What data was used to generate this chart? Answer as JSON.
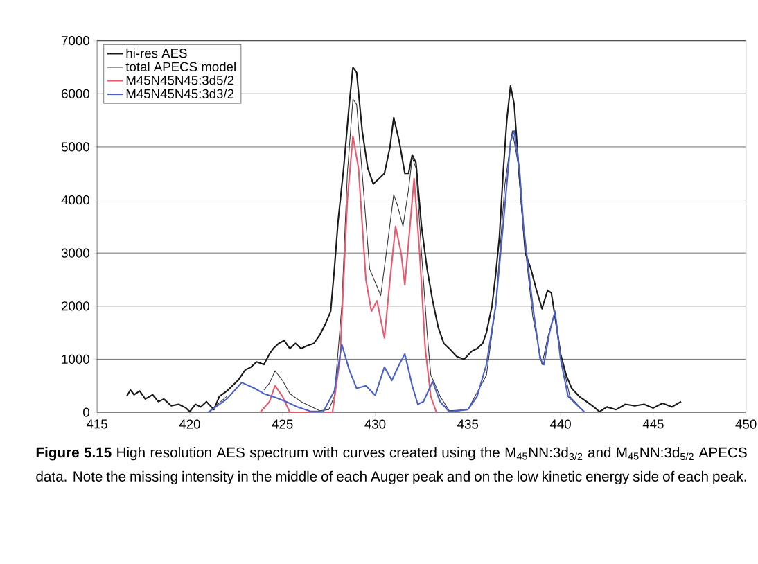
{
  "chart_data": {
    "type": "line",
    "annotations": [
      "**Figure 5.15** High resolution AES spectrum with curves created using the M$_{45}$NN:3d$_{3/2}$ and M$_{45}$NN:3d$_{5/2}$ APECS data. Note the missing intensity in the middle of each Auger peak and on the low kinetic energy side of each peak."
    ],
    "xlim": [
      415,
      450
    ],
    "ylim": [
      0,
      7000
    ],
    "xticks": [
      415,
      420,
      425,
      430,
      435,
      440,
      445,
      450
    ],
    "yticks": [
      0,
      1000,
      2000,
      3000,
      4000,
      5000,
      6000,
      7000
    ],
    "grid": "y",
    "legend": "top left",
    "marker": "none",
    "line_style": "solid",
    "series": [
      {
        "name": "hi-res AES",
        "color": "#1a1a1a",
        "x": [
          416.6,
          416.8,
          417.0,
          417.3,
          417.6,
          418.0,
          418.3,
          418.6,
          419.0,
          419.4,
          419.8,
          420.0,
          420.3,
          420.6,
          420.9,
          421.3,
          421.6,
          422.0,
          422.3,
          422.6,
          423.0,
          423.3,
          423.6,
          424.0,
          424.3,
          424.5,
          424.8,
          425.1,
          425.4,
          425.7,
          426.0,
          426.3,
          426.7,
          427.0,
          427.3,
          427.6,
          427.8,
          428.0,
          428.3,
          428.6,
          428.8,
          429.0,
          429.3,
          429.6,
          429.9,
          430.2,
          430.5,
          430.8,
          431.0,
          431.3,
          431.6,
          431.8,
          432.0,
          432.2,
          432.5,
          432.8,
          433.1,
          433.4,
          433.7,
          434.0,
          434.4,
          434.8,
          435.2,
          435.5,
          435.8,
          436.0,
          436.3,
          436.5,
          436.7,
          436.9,
          437.1,
          437.3,
          437.5,
          437.7,
          437.9,
          438.1,
          438.4,
          438.7,
          439.0,
          439.3,
          439.5,
          439.7,
          440.0,
          440.3,
          440.6,
          441.0,
          441.4,
          441.8,
          442.1,
          442.5,
          443.0,
          443.5,
          444.0,
          444.5,
          445.0,
          445.5,
          446.0,
          446.5
        ],
        "values": [
          300,
          420,
          330,
          400,
          250,
          330,
          200,
          250,
          120,
          150,
          80,
          10,
          150,
          100,
          200,
          50,
          300,
          400,
          500,
          600,
          800,
          850,
          950,
          900,
          1100,
          1200,
          1300,
          1350,
          1200,
          1300,
          1200,
          1250,
          1300,
          1450,
          1650,
          1900,
          2700,
          3600,
          4600,
          5800,
          6500,
          6400,
          5300,
          4600,
          4300,
          4400,
          4500,
          5000,
          5550,
          5100,
          4500,
          4500,
          4850,
          4700,
          3500,
          2700,
          2100,
          1600,
          1300,
          1200,
          1050,
          1000,
          1150,
          1200,
          1300,
          1500,
          2000,
          2600,
          3300,
          4500,
          5500,
          6150,
          5800,
          4800,
          3900,
          3000,
          2700,
          2300,
          1950,
          2300,
          2250,
          1800,
          1100,
          700,
          450,
          300,
          200,
          100,
          10,
          100,
          50,
          150,
          120,
          150,
          80,
          170,
          100,
          200
        ]
      },
      {
        "name": "total APECS model",
        "color": "#333333",
        "x": [
          421.0,
          422.0,
          422.8,
          423.5,
          424.0,
          424.3,
          424.6,
          425.0,
          425.4,
          426.0,
          427.0,
          427.5,
          427.8,
          428.2,
          428.5,
          428.8,
          429.0,
          429.3,
          429.7,
          430.0,
          430.3,
          430.6,
          431.0,
          431.2,
          431.5,
          431.8,
          432.0,
          432.2,
          432.5,
          432.8,
          433.0,
          433.2,
          433.5,
          434.0,
          435.0,
          436.0,
          436.5,
          437.0,
          437.4,
          437.7,
          438.0,
          438.5,
          439.0,
          439.3,
          439.7,
          440.0,
          440.5,
          441.3
        ],
        "values": [
          0,
          300,
          null,
          null,
          420,
          550,
          780,
          600,
          350,
          200,
          30,
          50,
          300,
          2000,
          4500,
          5900,
          5800,
          4500,
          2700,
          2450,
          2200,
          3000,
          4100,
          3900,
          3500,
          4200,
          4800,
          4600,
          3000,
          1500,
          700,
          550,
          300,
          30,
          50,
          700,
          2000,
          4300,
          5300,
          4700,
          3400,
          1800,
          900,
          1400,
          1900,
          1100,
          300,
          0
        ]
      },
      {
        "name": "M45N45N45:3d5/2",
        "color": "#e85a6e",
        "x": [
          423.8,
          424.3,
          424.6,
          425.0,
          425.4,
          427.7,
          428.1,
          428.5,
          428.8,
          429.1,
          429.5,
          429.8,
          430.1,
          430.5,
          430.8,
          431.1,
          431.4,
          431.6,
          431.8,
          432.1,
          432.4,
          432.7,
          433.0,
          433.3
        ],
        "values": [
          0,
          200,
          500,
          300,
          0,
          0,
          1000,
          4000,
          5200,
          4600,
          2500,
          1900,
          2100,
          1400,
          2500,
          3500,
          3000,
          2400,
          3200,
          4400,
          3000,
          1200,
          300,
          0
        ]
      },
      {
        "name": "M45N45N45:3d3/2",
        "color": "#4a62c8",
        "x": [
          421.0,
          422.0,
          422.8,
          423.5,
          424.0,
          424.6,
          425.2,
          425.8,
          426.5,
          427.2,
          427.8,
          428.2,
          428.6,
          429.0,
          429.5,
          430.0,
          430.5,
          430.9,
          431.3,
          431.6,
          432.0,
          432.3,
          432.6,
          433.1,
          433.5,
          434.0,
          435.0,
          435.5,
          436.0,
          436.5,
          437.0,
          437.3,
          437.5,
          437.8,
          438.0,
          438.5,
          438.9,
          439.1,
          439.4,
          439.7,
          440.0,
          440.4,
          441.3
        ],
        "values": [
          0,
          250,
          560,
          450,
          350,
          280,
          200,
          100,
          20,
          10,
          400,
          1280,
          800,
          450,
          500,
          320,
          850,
          600,
          900,
          1100,
          500,
          150,
          200,
          580,
          200,
          10,
          50,
          300,
          900,
          2000,
          3900,
          5100,
          5300,
          4500,
          3500,
          2000,
          1000,
          900,
          1500,
          1900,
          1000,
          300,
          0
        ]
      }
    ]
  }
}
